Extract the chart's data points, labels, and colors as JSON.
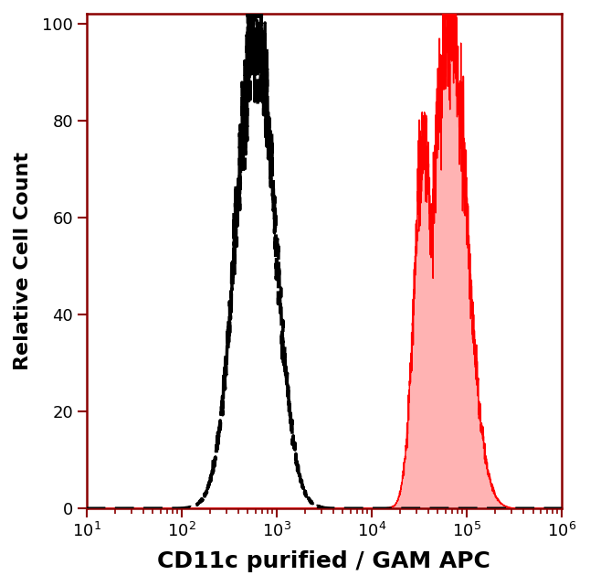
{
  "xlabel": "CD11c purified / GAM APC",
  "ylabel": "Relative Cell Count",
  "xlim": [
    10,
    1000000
  ],
  "ylim": [
    0,
    102
  ],
  "yticks": [
    0,
    20,
    40,
    60,
    80,
    100
  ],
  "background_color": "#ffffff",
  "plot_background": "#ffffff",
  "spine_color": "#8B0000",
  "tick_color": "#8B0000",
  "dashed_color": "#000000",
  "red_fill_color": "#ffb3b3",
  "red_line_color": "#ff0000",
  "dashed_mean_log": 2.78,
  "dashed_std_log": 0.2,
  "dashed_peak": 100,
  "red_mean_log": 4.82,
  "red_std_log": 0.18,
  "red_peak": 100,
  "red_shoulder_mean_log": 4.55,
  "red_shoulder_std_log": 0.1,
  "red_shoulder_peak": 75,
  "xlabel_fontsize": 18,
  "ylabel_fontsize": 16,
  "tick_fontsize": 13
}
